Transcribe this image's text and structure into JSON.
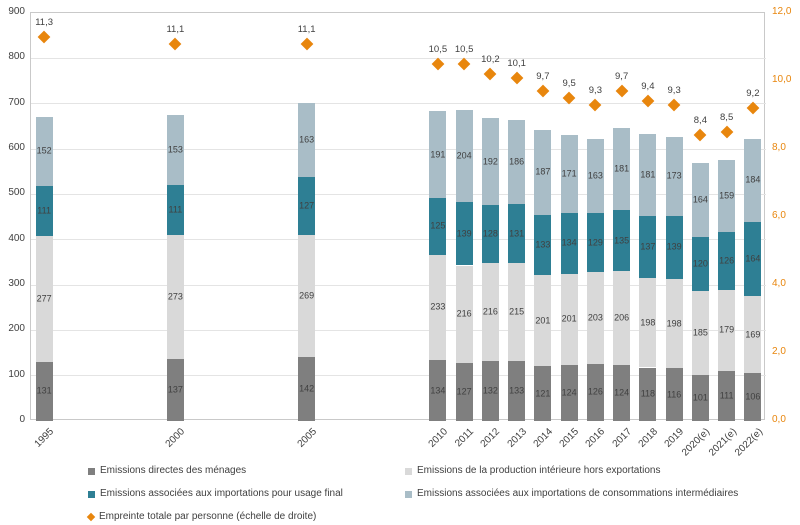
{
  "chart_data": {
    "type": "bar",
    "subtype": "stacked-bars-with-scatter-on-secondary-axis",
    "title": "",
    "categories": [
      "1995",
      "2000",
      "2005",
      "2010",
      "2011",
      "2012",
      "2013",
      "2014",
      "2015",
      "2016",
      "2017",
      "2018",
      "2019",
      "2020(e)",
      "2021(e)",
      "2022(e)"
    ],
    "year_positions": [
      1995,
      2000,
      2005,
      2010,
      2011,
      2012,
      2013,
      2014,
      2015,
      2016,
      2017,
      2018,
      2019,
      2020,
      2021,
      2022
    ],
    "series": [
      {
        "name": "Emissions directes des ménages",
        "color": "#7f7f7f",
        "values": [
          131,
          137,
          142,
          134,
          127,
          132,
          133,
          121,
          124,
          126,
          124,
          118,
          116,
          101,
          111,
          106
        ]
      },
      {
        "name": "Emissions de la production intérieure hors exportations",
        "color": "#d9d9d9",
        "values": [
          277,
          273,
          269,
          233,
          216,
          216,
          215,
          201,
          201,
          203,
          206,
          198,
          198,
          185,
          179,
          169
        ]
      },
      {
        "name": "Emissions associées aux importations pour usage final",
        "color": "#2e7f94",
        "values": [
          111,
          111,
          127,
          125,
          139,
          128,
          131,
          133,
          134,
          129,
          135,
          137,
          139,
          120,
          126,
          164
        ]
      },
      {
        "name": "Emissions associées aux importations de consommations intermédiaires",
        "color": "#a9bdc7",
        "values": [
          152,
          153,
          163,
          191,
          204,
          192,
          186,
          187,
          171,
          163,
          181,
          181,
          173,
          164,
          159,
          184
        ]
      }
    ],
    "scatter": {
      "name": "Empreinte totale par personne (échelle de droite)",
      "color": "#e8860d",
      "values": [
        11.3,
        11.1,
        11.1,
        10.5,
        10.5,
        10.2,
        10.1,
        9.7,
        9.5,
        9.3,
        9.7,
        9.4,
        9.3,
        8.4,
        8.5,
        9.2
      ],
      "labels": [
        "11,3",
        "11,1",
        "11,1",
        "10,5",
        "10,5",
        "10,2",
        "10,1",
        "9,7",
        "9,5",
        "9,3",
        "9,7",
        "9,4",
        "9,3",
        "8,4",
        "8,5",
        "9,2"
      ]
    },
    "left_axis": {
      "min": 0,
      "max": 900,
      "step": 100,
      "ticks": [
        "0",
        "100",
        "200",
        "300",
        "400",
        "500",
        "600",
        "700",
        "800",
        "900"
      ]
    },
    "right_axis": {
      "min": 0,
      "max": 12,
      "step": 2,
      "ticks": [
        "0,0",
        "2,0",
        "4,0",
        "6,0",
        "8,0",
        "10,0",
        "12,0"
      ],
      "color": "#e8860d"
    },
    "grid": true,
    "legend_position": "bottom"
  },
  "legend": {
    "items": [
      {
        "label": "Emissions directes des ménages",
        "marker": "square",
        "color": "#7f7f7f"
      },
      {
        "label": "Emissions de la production intérieure hors exportations",
        "marker": "square",
        "color": "#d9d9d9"
      },
      {
        "label": "Emissions associées aux importations pour usage final",
        "marker": "square",
        "color": "#2e7f94"
      },
      {
        "label": "Emissions associées aux importations de consommations intermédiaires",
        "marker": "square",
        "color": "#a9bdc7"
      },
      {
        "label": "Empreinte totale par personne (échelle de droite)",
        "marker": "diamond",
        "color": "#e8860d"
      }
    ]
  }
}
